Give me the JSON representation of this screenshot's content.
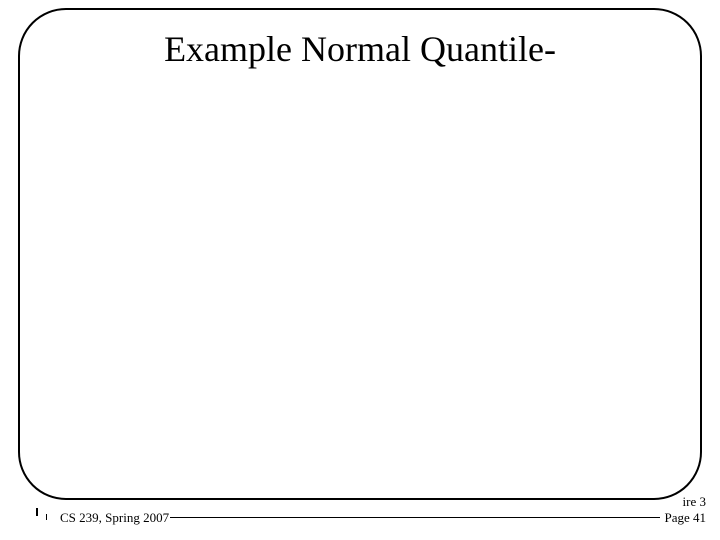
{
  "slide": {
    "title": "Example Normal Quantile-",
    "title_fontsize": 36,
    "title_color": "#000000",
    "background_color": "#ffffff",
    "frame_border_color": "#000000",
    "frame_border_width": 2,
    "frame_border_radius": 48
  },
  "footer": {
    "left": "CS 239, Spring 2007",
    "right_top": "ire 3",
    "right_bottom": "Page 41",
    "font_size": 13,
    "divider_color": "#000000"
  }
}
